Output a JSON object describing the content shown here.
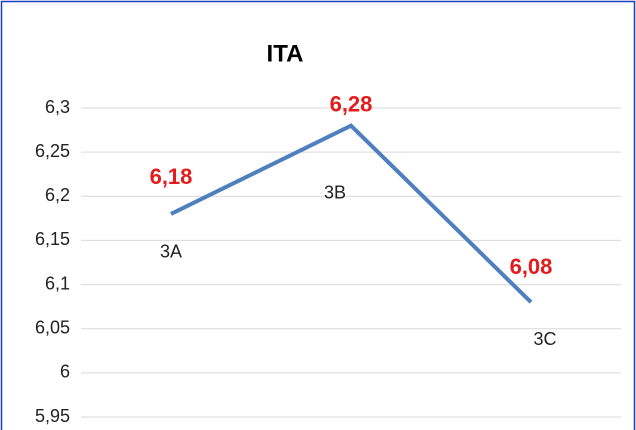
{
  "chart_data": {
    "type": "line",
    "title": "ITA",
    "categories": [
      "3A",
      "3B",
      "3C"
    ],
    "series": [
      {
        "name": "ITA",
        "color": "#4f7fbf",
        "values": [
          6.18,
          6.28,
          6.08
        ],
        "value_labels": [
          "6,18",
          "6,28",
          "6,08"
        ]
      }
    ],
    "ylim": [
      5.95,
      6.3
    ],
    "yticks": [
      {
        "value": 5.95,
        "label": "5,95"
      },
      6,
      {
        "value": 6.05,
        "label": "6,05"
      },
      {
        "value": 6.1,
        "label": "6,1"
      },
      {
        "value": 6.15,
        "label": "6,15"
      },
      {
        "value": 6.2,
        "label": "6,2"
      },
      {
        "value": 6.25,
        "label": "6,25"
      },
      {
        "value": 6.3,
        "label": "6,3"
      }
    ],
    "grid": true
  }
}
